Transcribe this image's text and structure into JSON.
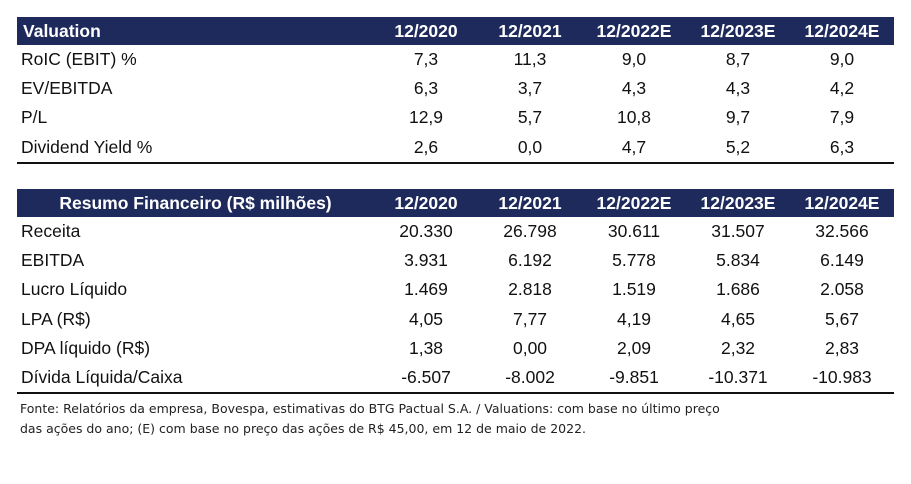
{
  "valuation": {
    "header": [
      "Valuation",
      "12/2020",
      "12/2021",
      "12/2022E",
      "12/2023E",
      "12/2024E"
    ],
    "rows": [
      [
        "RoIC (EBIT) %",
        "7,3",
        "11,3",
        "9,0",
        "8,7",
        "9,0"
      ],
      [
        "EV/EBITDA",
        "6,3",
        "3,7",
        "4,3",
        "4,3",
        "4,2"
      ],
      [
        "P/L",
        "12,9",
        "5,7",
        "10,8",
        "9,7",
        "7,9"
      ],
      [
        "Dividend Yield %",
        "2,6",
        "0,0",
        "4,7",
        "5,2",
        "6,3"
      ]
    ]
  },
  "resumo": {
    "header": [
      "Resumo Financeiro (R$ milhões)",
      "12/2020",
      "12/2021",
      "12/2022E",
      "12/2023E",
      "12/2024E"
    ],
    "rows": [
      [
        "Receita",
        "20.330",
        "26.798",
        "30.611",
        "31.507",
        "32.566"
      ],
      [
        "EBITDA",
        "3.931",
        "6.192",
        "5.778",
        "5.834",
        "6.149"
      ],
      [
        "Lucro Líquido",
        "1.469",
        "2.818",
        "1.519",
        "1.686",
        "2.058"
      ],
      [
        "LPA (R$)",
        "4,05",
        "7,77",
        "4,19",
        "4,65",
        "5,67"
      ],
      [
        "DPA líquido (R$)",
        "1,38",
        "0,00",
        "2,09",
        "2,32",
        "2,83"
      ],
      [
        "Dívida Líquida/Caixa",
        "-6.507",
        "-8.002",
        "-9.851",
        "-10.371",
        "-10.983"
      ]
    ]
  },
  "footnote": {
    "line1": "Fonte: Relatórios da empresa, Bovespa, estimativas do BTG Pactual S.A. / Valuations: com base no último preço",
    "line2": "das ações do ano; (E) com base no preço das ações de R$ 45,00, em 12 de maio de 2022."
  }
}
